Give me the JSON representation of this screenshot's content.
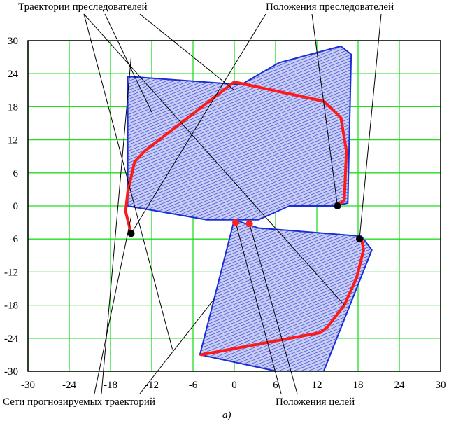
{
  "chart_data": {
    "type": "scatter",
    "title": "",
    "caption": "а)",
    "xlabel": "",
    "ylabel": "",
    "xlim": [
      -30,
      30
    ],
    "ylim": [
      -30,
      30
    ],
    "x_ticks": [
      -30,
      -24,
      -18,
      -12,
      -6,
      0,
      6,
      12,
      18,
      24,
      30
    ],
    "y_ticks": [
      30,
      24,
      18,
      12,
      6,
      0,
      -6,
      -12,
      -18,
      -24,
      -30
    ],
    "grid": true,
    "legend": "none",
    "colors": {
      "background": "#ffffff",
      "grid": "#22dd22",
      "mesh": "#1a2ed8",
      "trajectory": "#ff1a1a",
      "pursuer": "#000000",
      "target": "#ff2020"
    },
    "annotations": [
      {
        "id": "trajectories",
        "text": "Траектории преследователей"
      },
      {
        "id": "pursuer-positions",
        "text": "Положения преследователей"
      },
      {
        "id": "prediction-nets",
        "text": "Сети прогнозируемых траекторий"
      },
      {
        "id": "target-positions",
        "text": "Положения целей"
      }
    ],
    "series": [
      {
        "kind": "mesh",
        "points": [
          [
            -15.5,
            23.5
          ],
          [
            -15.5,
            0
          ],
          [
            -4,
            -2.5
          ],
          [
            3.5,
            -2.5
          ],
          [
            8,
            0
          ],
          [
            14.5,
            0
          ],
          [
            16.5,
            0.5
          ],
          [
            17,
            27.5
          ],
          [
            15.5,
            29
          ],
          [
            6.5,
            26
          ],
          [
            1,
            22
          ],
          [
            -15.5,
            23.5
          ]
        ]
      },
      {
        "kind": "mesh",
        "points": [
          [
            -5,
            -27
          ],
          [
            0,
            -2.5
          ],
          [
            3.5,
            -4
          ],
          [
            18.5,
            -5.5
          ],
          [
            20,
            -8
          ],
          [
            13,
            -30
          ],
          [
            8,
            -30.5
          ],
          [
            -5,
            -27
          ]
        ]
      },
      {
        "kind": "trajectory",
        "points": [
          [
            -15,
            -5
          ],
          [
            -15.8,
            -1
          ],
          [
            -15.5,
            2.5
          ],
          [
            -14.5,
            8
          ],
          [
            -13,
            10
          ],
          [
            0,
            22.5
          ],
          [
            13,
            19
          ],
          [
            15.5,
            16
          ],
          [
            16.3,
            10
          ],
          [
            16,
            1
          ],
          [
            15,
            0
          ]
        ]
      },
      {
        "kind": "trajectory",
        "points": [
          [
            -4.8,
            -27
          ],
          [
            12.5,
            -23
          ],
          [
            13.5,
            -22
          ],
          [
            16,
            -18
          ],
          [
            17.8,
            -13
          ],
          [
            18.8,
            -8
          ],
          [
            18.5,
            -6
          ]
        ]
      },
      {
        "kind": "pursuer",
        "points": [
          [
            -15,
            -5
          ],
          [
            15,
            0
          ],
          [
            18.2,
            -6
          ]
        ]
      },
      {
        "kind": "target",
        "points": [
          [
            0.2,
            -3
          ],
          [
            2.2,
            -3.2
          ]
        ]
      }
    ]
  }
}
